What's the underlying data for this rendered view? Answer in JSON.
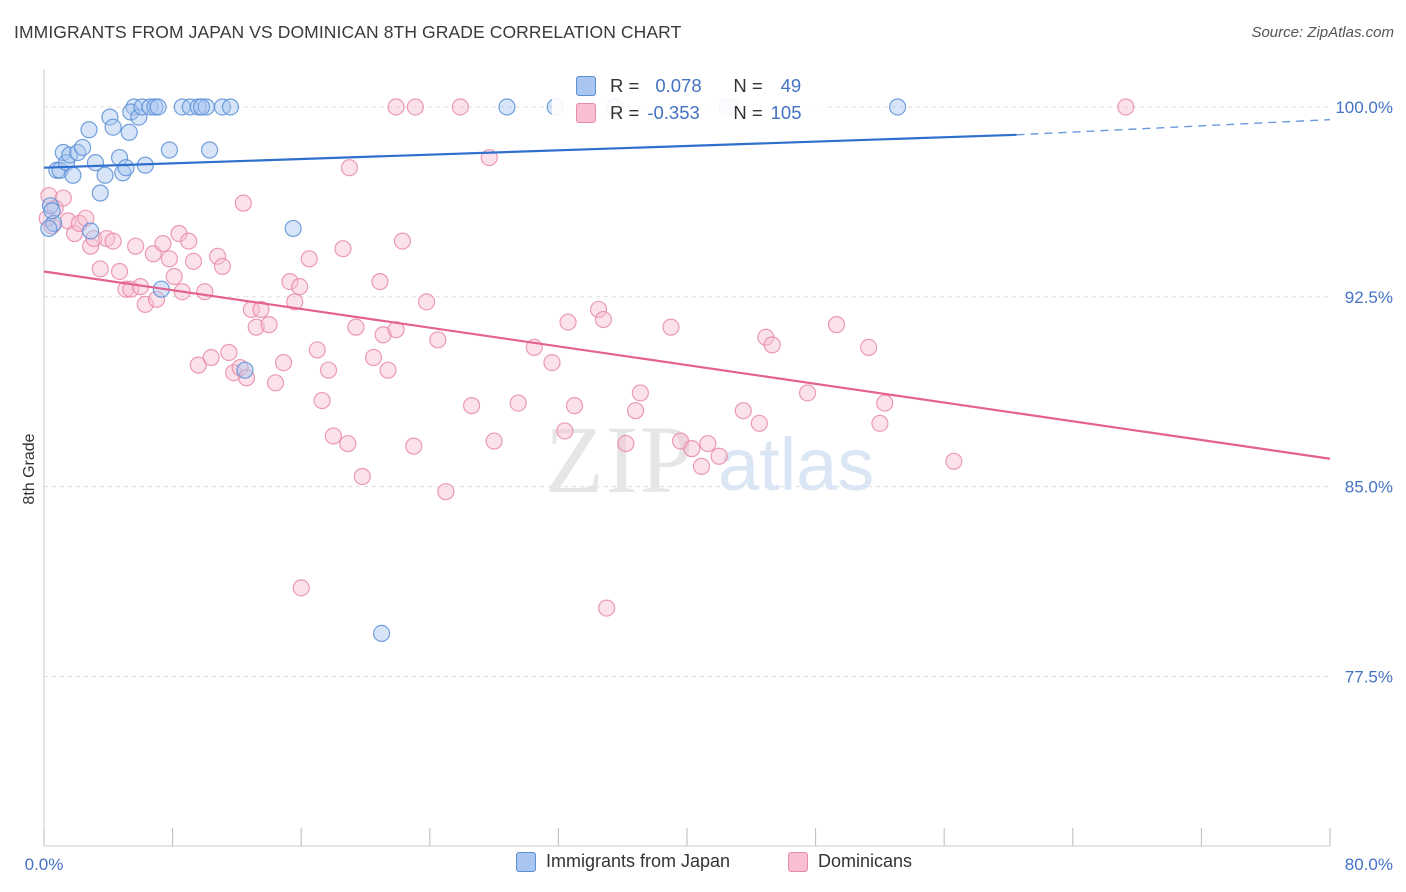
{
  "title": "IMMIGRANTS FROM JAPAN VS DOMINICAN 8TH GRADE CORRELATION CHART",
  "source": "Source: ZipAtlas.com",
  "watermark": {
    "zip": "ZIP",
    "atlas": "atlas"
  },
  "colors": {
    "japan_fill": "#a9c6f0",
    "japan_stroke": "#5b8fd6",
    "japan_line": "#2f6fce",
    "dominican_fill": "#f7bfd0",
    "dominican_stroke": "#e98aa8",
    "dominican_line": "#e4608e",
    "axis_text": "#4472c4",
    "grid": "#dddddd"
  },
  "stats": [
    {
      "r_label": "R =",
      "r_value": "0.078",
      "n_label": "N =",
      "n_value": "49"
    },
    {
      "r_label": "R =",
      "r_value": "-0.353",
      "n_label": "N =",
      "n_value": "105"
    }
  ],
  "legend": [
    {
      "label": "Immigrants from Japan"
    },
    {
      "label": "Dominicans"
    }
  ],
  "chart_data": {
    "type": "scatter",
    "title": "IMMIGRANTS FROM JAPAN VS DOMINICAN 8TH GRADE CORRELATION CHART",
    "xlabel": "",
    "ylabel": "8th Grade",
    "xlim": [
      0,
      80
    ],
    "ylim": [
      70.8,
      101.5
    ],
    "x_tick_labels": [
      "0.0%",
      "80.0%"
    ],
    "y_ticks": [
      100,
      92.5,
      85,
      77.5
    ],
    "y_tick_labels": [
      "100.0%",
      "92.5%",
      "85.0%",
      "77.5%"
    ],
    "grid": true,
    "legend_position": "bottom",
    "series": [
      {
        "name": "Immigrants from Japan",
        "trend": {
          "x0": 0,
          "y0": 97.6,
          "x1": 60.5,
          "y1": 98.9,
          "dash_to_x": 80,
          "dash_to_y": 99.5
        },
        "points": [
          [
            0.4,
            96.1
          ],
          [
            0.6,
            95.4
          ],
          [
            0.3,
            95.2
          ],
          [
            0.8,
            97.5
          ],
          [
            1.0,
            97.5
          ],
          [
            1.2,
            98.2
          ],
          [
            1.4,
            97.8
          ],
          [
            1.6,
            98.1
          ],
          [
            1.8,
            97.3
          ],
          [
            2.1,
            98.2
          ],
          [
            2.4,
            98.4
          ],
          [
            2.8,
            99.1
          ],
          [
            3.2,
            97.8
          ],
          [
            3.5,
            96.6
          ],
          [
            3.8,
            97.3
          ],
          [
            4.1,
            99.6
          ],
          [
            4.3,
            99.2
          ],
          [
            4.7,
            98.0
          ],
          [
            4.9,
            97.4
          ],
          [
            5.1,
            97.6
          ],
          [
            5.3,
            99.0
          ],
          [
            5.6,
            100.0
          ],
          [
            5.4,
            99.8
          ],
          [
            5.9,
            99.6
          ],
          [
            6.1,
            100.0
          ],
          [
            6.3,
            97.7
          ],
          [
            6.6,
            100.0
          ],
          [
            6.9,
            100.0
          ],
          [
            7.1,
            100.0
          ],
          [
            7.8,
            98.3
          ],
          [
            8.6,
            100.0
          ],
          [
            9.1,
            100.0
          ],
          [
            9.6,
            100.0
          ],
          [
            10.1,
            100.0
          ],
          [
            10.3,
            98.3
          ],
          [
            11.1,
            100.0
          ],
          [
            11.6,
            100.0
          ],
          [
            7.3,
            92.8
          ],
          [
            12.5,
            89.6
          ],
          [
            15.5,
            95.2
          ],
          [
            21.0,
            79.2
          ],
          [
            28.8,
            100.0
          ],
          [
            31.8,
            100.0
          ],
          [
            35.5,
            100.0
          ],
          [
            42.5,
            100.0
          ],
          [
            53.1,
            100.0
          ],
          [
            0.5,
            95.9
          ],
          [
            2.9,
            95.1
          ],
          [
            9.8,
            100.0
          ]
        ]
      },
      {
        "name": "Dominicans",
        "trend": {
          "x0": 0,
          "y0": 93.5,
          "x1": 80,
          "y1": 86.1
        },
        "points": [
          [
            0.3,
            96.5
          ],
          [
            0.5,
            95.3
          ],
          [
            0.7,
            96.0
          ],
          [
            1.2,
            96.4
          ],
          [
            1.5,
            95.5
          ],
          [
            1.9,
            95.0
          ],
          [
            2.2,
            95.4
          ],
          [
            2.6,
            95.6
          ],
          [
            2.9,
            94.5
          ],
          [
            3.1,
            94.8
          ],
          [
            3.5,
            93.6
          ],
          [
            3.9,
            94.8
          ],
          [
            4.3,
            94.7
          ],
          [
            4.7,
            93.5
          ],
          [
            5.1,
            92.8
          ],
          [
            5.4,
            92.8
          ],
          [
            5.7,
            94.5
          ],
          [
            6.0,
            92.9
          ],
          [
            6.3,
            92.2
          ],
          [
            6.8,
            94.2
          ],
          [
            7.0,
            92.4
          ],
          [
            7.4,
            94.6
          ],
          [
            7.8,
            94.0
          ],
          [
            8.1,
            93.3
          ],
          [
            8.4,
            95.0
          ],
          [
            8.6,
            92.7
          ],
          [
            9.0,
            94.7
          ],
          [
            9.3,
            93.9
          ],
          [
            9.6,
            89.8
          ],
          [
            10.0,
            92.7
          ],
          [
            10.4,
            90.1
          ],
          [
            10.8,
            94.1
          ],
          [
            11.1,
            93.7
          ],
          [
            11.5,
            90.3
          ],
          [
            11.8,
            89.5
          ],
          [
            12.2,
            89.7
          ],
          [
            12.6,
            89.3
          ],
          [
            12.9,
            92.0
          ],
          [
            13.2,
            91.3
          ],
          [
            13.5,
            92.0
          ],
          [
            14.0,
            91.4
          ],
          [
            14.4,
            89.1
          ],
          [
            14.9,
            89.9
          ],
          [
            15.3,
            93.1
          ],
          [
            15.6,
            92.3
          ],
          [
            15.9,
            92.9
          ],
          [
            16.5,
            94.0
          ],
          [
            17.0,
            90.4
          ],
          [
            17.3,
            88.4
          ],
          [
            17.7,
            89.6
          ],
          [
            18.0,
            87.0
          ],
          [
            18.6,
            94.4
          ],
          [
            18.9,
            86.7
          ],
          [
            19.0,
            97.6
          ],
          [
            19.4,
            91.3
          ],
          [
            19.8,
            85.4
          ],
          [
            20.5,
            90.1
          ],
          [
            20.9,
            93.1
          ],
          [
            21.1,
            91.0
          ],
          [
            21.4,
            89.6
          ],
          [
            21.9,
            91.2
          ],
          [
            22.3,
            94.7
          ],
          [
            23.0,
            86.6
          ],
          [
            23.8,
            92.3
          ],
          [
            24.5,
            90.8
          ],
          [
            25.0,
            84.8
          ],
          [
            26.6,
            88.2
          ],
          [
            27.7,
            98.0
          ],
          [
            28.0,
            86.8
          ],
          [
            29.5,
            88.3
          ],
          [
            30.5,
            90.5
          ],
          [
            31.6,
            89.9
          ],
          [
            32.4,
            87.2
          ],
          [
            32.6,
            91.5
          ],
          [
            33.0,
            88.2
          ],
          [
            34.5,
            92.0
          ],
          [
            34.8,
            91.6
          ],
          [
            35.0,
            80.2
          ],
          [
            36.2,
            86.7
          ],
          [
            36.8,
            88.0
          ],
          [
            37.1,
            88.7
          ],
          [
            39.0,
            91.3
          ],
          [
            39.6,
            86.8
          ],
          [
            40.3,
            86.5
          ],
          [
            40.9,
            85.8
          ],
          [
            41.3,
            86.7
          ],
          [
            42.0,
            86.2
          ],
          [
            42.8,
            100.0
          ],
          [
            43.5,
            88.0
          ],
          [
            44.5,
            87.5
          ],
          [
            44.9,
            90.9
          ],
          [
            45.3,
            90.6
          ],
          [
            47.5,
            88.7
          ],
          [
            49.3,
            91.4
          ],
          [
            51.3,
            90.5
          ],
          [
            52.0,
            87.5
          ],
          [
            52.3,
            88.3
          ],
          [
            56.6,
            86.0
          ],
          [
            67.3,
            100.0
          ],
          [
            21.9,
            100.0
          ],
          [
            23.1,
            100.0
          ],
          [
            25.9,
            100.0
          ],
          [
            12.4,
            96.2
          ],
          [
            16.0,
            81.0
          ],
          [
            0.2,
            95.6
          ]
        ]
      }
    ]
  }
}
